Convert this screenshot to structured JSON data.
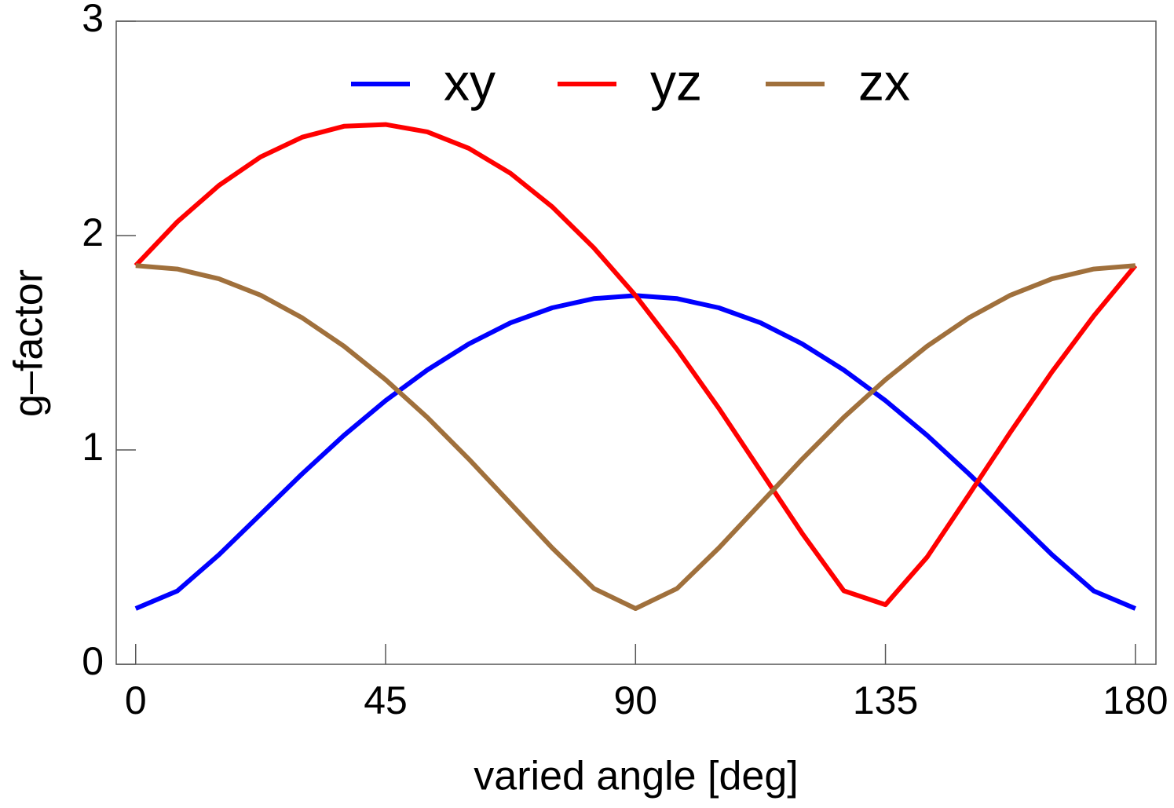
{
  "chart_data": {
    "type": "line",
    "xlabel": "varied angle [deg]",
    "ylabel": "g–factor",
    "x": [
      0,
      7.5,
      15,
      22.5,
      30,
      37.5,
      45,
      52.5,
      60,
      67.5,
      75,
      82.5,
      90,
      97.5,
      105,
      112.5,
      120,
      127.5,
      135,
      142.5,
      150,
      157.5,
      165,
      172.5,
      180
    ],
    "series": [
      {
        "name": "xy",
        "color": "#0000ff",
        "values": [
          0.26,
          0.342,
          0.511,
          0.7,
          0.889,
          1.068,
          1.23,
          1.373,
          1.495,
          1.593,
          1.663,
          1.706,
          1.72,
          1.706,
          1.663,
          1.593,
          1.495,
          1.373,
          1.23,
          1.068,
          0.889,
          0.7,
          0.511,
          0.342,
          0.26
        ]
      },
      {
        "name": "yz",
        "color": "#ff0000",
        "values": [
          1.86,
          2.064,
          2.234,
          2.367,
          2.459,
          2.51,
          2.518,
          2.484,
          2.407,
          2.29,
          2.134,
          1.943,
          1.72,
          1.468,
          1.194,
          0.903,
          0.611,
          0.343,
          0.278,
          0.5,
          0.79,
          1.083,
          1.365,
          1.625,
          1.86
        ]
      },
      {
        "name": "zx",
        "color": "#a0703c",
        "values": [
          1.86,
          1.844,
          1.798,
          1.722,
          1.616,
          1.484,
          1.328,
          1.152,
          0.957,
          0.75,
          0.543,
          0.354,
          0.26,
          0.354,
          0.543,
          0.75,
          0.957,
          1.152,
          1.328,
          1.484,
          1.616,
          1.722,
          1.798,
          1.844,
          1.86
        ]
      }
    ],
    "xlim": [
      -3.5,
      183.7
    ],
    "ylim": [
      0,
      3
    ],
    "xticks": [
      0,
      45,
      90,
      135,
      180
    ],
    "yticks": [
      0,
      1,
      2,
      3
    ],
    "legend": "top"
  }
}
